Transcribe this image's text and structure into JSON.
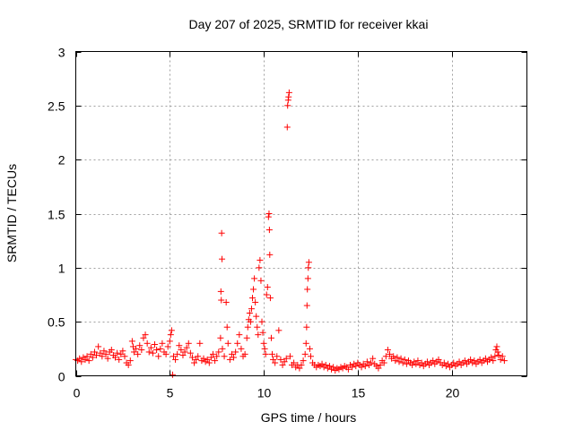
{
  "chart_data": {
    "type": "scatter",
    "title": "Day 207 of 2025, SRMTID for receiver kkai",
    "xlabel": "GPS time / hours",
    "ylabel": "SRMTID / TECUs",
    "xlim": [
      0,
      24
    ],
    "ylim": [
      0,
      3
    ],
    "xticks": [
      0,
      5,
      10,
      15,
      20
    ],
    "xtick_labels": [
      "0",
      "5",
      "10",
      "15",
      "20"
    ],
    "yticks": [
      0,
      0.5,
      1,
      1.5,
      2,
      2.5,
      3
    ],
    "ytick_labels": [
      "0",
      "0.5",
      "1",
      "1.5",
      "2",
      "2.5",
      "3"
    ],
    "grid": true,
    "marker": "+",
    "color": "#ff0000",
    "series": [
      {
        "name": "SRMTID",
        "points": [
          [
            0.0,
            0.15
          ],
          [
            0.1,
            0.14
          ],
          [
            0.2,
            0.16
          ],
          [
            0.3,
            0.13
          ],
          [
            0.4,
            0.17
          ],
          [
            0.5,
            0.15
          ],
          [
            0.6,
            0.18
          ],
          [
            0.7,
            0.14
          ],
          [
            0.8,
            0.2
          ],
          [
            0.9,
            0.17
          ],
          [
            1.0,
            0.22
          ],
          [
            1.1,
            0.19
          ],
          [
            1.2,
            0.27
          ],
          [
            1.3,
            0.21
          ],
          [
            1.4,
            0.18
          ],
          [
            1.5,
            0.23
          ],
          [
            1.6,
            0.2
          ],
          [
            1.7,
            0.16
          ],
          [
            1.8,
            0.22
          ],
          [
            1.9,
            0.24
          ],
          [
            2.0,
            0.19
          ],
          [
            2.1,
            0.17
          ],
          [
            2.2,
            0.21
          ],
          [
            2.3,
            0.15
          ],
          [
            2.4,
            0.2
          ],
          [
            2.5,
            0.23
          ],
          [
            2.6,
            0.18
          ],
          [
            2.7,
            0.12
          ],
          [
            2.8,
            0.1
          ],
          [
            2.9,
            0.14
          ],
          [
            3.0,
            0.32
          ],
          [
            3.05,
            0.27
          ],
          [
            3.1,
            0.22
          ],
          [
            3.2,
            0.25
          ],
          [
            3.3,
            0.2
          ],
          [
            3.4,
            0.28
          ],
          [
            3.5,
            0.24
          ],
          [
            3.6,
            0.35
          ],
          [
            3.7,
            0.38
          ],
          [
            3.8,
            0.3
          ],
          [
            3.9,
            0.22
          ],
          [
            4.0,
            0.26
          ],
          [
            4.1,
            0.21
          ],
          [
            4.2,
            0.29
          ],
          [
            4.3,
            0.24
          ],
          [
            4.4,
            0.18
          ],
          [
            4.5,
            0.25
          ],
          [
            4.6,
            0.3
          ],
          [
            4.7,
            0.22
          ],
          [
            4.8,
            0.2
          ],
          [
            4.9,
            0.27
          ],
          [
            5.0,
            0.32
          ],
          [
            5.05,
            0.38
          ],
          [
            5.1,
            0.42
          ],
          [
            5.15,
            0.01
          ],
          [
            5.2,
            0.18
          ],
          [
            5.3,
            0.15
          ],
          [
            5.4,
            0.2
          ],
          [
            5.5,
            0.28
          ],
          [
            5.6,
            0.24
          ],
          [
            5.7,
            0.19
          ],
          [
            5.8,
            0.22
          ],
          [
            5.9,
            0.26
          ],
          [
            6.0,
            0.3
          ],
          [
            6.1,
            0.21
          ],
          [
            6.2,
            0.17
          ],
          [
            6.3,
            0.12
          ],
          [
            6.4,
            0.15
          ],
          [
            6.5,
            0.18
          ],
          [
            6.6,
            0.3
          ],
          [
            6.7,
            0.14
          ],
          [
            6.8,
            0.16
          ],
          [
            6.9,
            0.13
          ],
          [
            7.0,
            0.15
          ],
          [
            7.1,
            0.12
          ],
          [
            7.2,
            0.17
          ],
          [
            7.3,
            0.2
          ],
          [
            7.4,
            0.14
          ],
          [
            7.5,
            0.18
          ],
          [
            7.6,
            0.22
          ],
          [
            7.7,
            0.35
          ],
          [
            7.72,
            0.78
          ],
          [
            7.74,
            0.7
          ],
          [
            7.76,
            1.32
          ],
          [
            7.78,
            1.08
          ],
          [
            7.8,
            0.25
          ],
          [
            7.9,
            0.18
          ],
          [
            8.0,
            0.68
          ],
          [
            8.05,
            0.45
          ],
          [
            8.1,
            0.3
          ],
          [
            8.2,
            0.15
          ],
          [
            8.3,
            0.2
          ],
          [
            8.4,
            0.17
          ],
          [
            8.5,
            0.22
          ],
          [
            8.6,
            0.3
          ],
          [
            8.7,
            0.38
          ],
          [
            8.8,
            0.25
          ],
          [
            8.9,
            0.18
          ],
          [
            9.0,
            0.2
          ],
          [
            9.1,
            0.35
          ],
          [
            9.15,
            0.45
          ],
          [
            9.2,
            0.52
          ],
          [
            9.25,
            0.58
          ],
          [
            9.3,
            0.5
          ],
          [
            9.35,
            0.62
          ],
          [
            9.4,
            0.72
          ],
          [
            9.45,
            0.8
          ],
          [
            9.5,
            0.9
          ],
          [
            9.55,
            0.68
          ],
          [
            9.6,
            0.55
          ],
          [
            9.65,
            0.45
          ],
          [
            9.7,
            0.38
          ],
          [
            9.75,
            1.0
          ],
          [
            9.8,
            1.07
          ],
          [
            9.85,
            0.88
          ],
          [
            9.9,
            0.5
          ],
          [
            9.95,
            0.4
          ],
          [
            10.0,
            0.3
          ],
          [
            10.05,
            0.25
          ],
          [
            10.1,
            0.2
          ],
          [
            10.15,
            0.75
          ],
          [
            10.2,
            0.82
          ],
          [
            10.25,
            1.47
          ],
          [
            10.28,
            1.5
          ],
          [
            10.3,
            1.35
          ],
          [
            10.32,
            1.12
          ],
          [
            10.35,
            0.72
          ],
          [
            10.4,
            0.35
          ],
          [
            10.45,
            0.2
          ],
          [
            10.5,
            0.15
          ],
          [
            10.6,
            0.12
          ],
          [
            10.7,
            0.18
          ],
          [
            10.8,
            0.42
          ],
          [
            10.9,
            0.15
          ],
          [
            11.0,
            0.1
          ],
          [
            11.1,
            0.13
          ],
          [
            11.2,
            0.16
          ],
          [
            11.25,
            2.3
          ],
          [
            11.27,
            2.5
          ],
          [
            11.3,
            2.55
          ],
          [
            11.32,
            2.58
          ],
          [
            11.35,
            2.62
          ],
          [
            11.4,
            0.18
          ],
          [
            11.5,
            0.1
          ],
          [
            11.6,
            0.12
          ],
          [
            11.7,
            0.08
          ],
          [
            11.8,
            0.1
          ],
          [
            11.9,
            0.07
          ],
          [
            12.0,
            0.1
          ],
          [
            12.1,
            0.14
          ],
          [
            12.2,
            0.2
          ],
          [
            12.25,
            0.3
          ],
          [
            12.28,
            0.45
          ],
          [
            12.3,
            0.65
          ],
          [
            12.32,
            0.8
          ],
          [
            12.35,
            0.9
          ],
          [
            12.37,
            1.0
          ],
          [
            12.4,
            1.05
          ],
          [
            12.45,
            0.25
          ],
          [
            12.5,
            0.18
          ],
          [
            12.6,
            0.12
          ],
          [
            12.7,
            0.1
          ],
          [
            12.8,
            0.08
          ],
          [
            12.9,
            0.1
          ],
          [
            13.0,
            0.09
          ],
          [
            13.1,
            0.11
          ],
          [
            13.2,
            0.08
          ],
          [
            13.3,
            0.1
          ],
          [
            13.4,
            0.07
          ],
          [
            13.5,
            0.09
          ],
          [
            13.6,
            0.06
          ],
          [
            13.7,
            0.08
          ],
          [
            13.8,
            0.05
          ],
          [
            13.9,
            0.07
          ],
          [
            14.0,
            0.06
          ],
          [
            14.1,
            0.08
          ],
          [
            14.2,
            0.07
          ],
          [
            14.3,
            0.09
          ],
          [
            14.4,
            0.08
          ],
          [
            14.5,
            0.06
          ],
          [
            14.6,
            0.1
          ],
          [
            14.7,
            0.08
          ],
          [
            14.8,
            0.11
          ],
          [
            14.9,
            0.09
          ],
          [
            15.0,
            0.12
          ],
          [
            15.1,
            0.1
          ],
          [
            15.2,
            0.08
          ],
          [
            15.3,
            0.11
          ],
          [
            15.4,
            0.09
          ],
          [
            15.5,
            0.13
          ],
          [
            15.6,
            0.1
          ],
          [
            15.7,
            0.12
          ],
          [
            15.8,
            0.16
          ],
          [
            15.9,
            0.11
          ],
          [
            16.0,
            0.09
          ],
          [
            16.1,
            0.07
          ],
          [
            16.2,
            0.1
          ],
          [
            16.3,
            0.14
          ],
          [
            16.4,
            0.12
          ],
          [
            16.5,
            0.18
          ],
          [
            16.6,
            0.24
          ],
          [
            16.7,
            0.2
          ],
          [
            16.8,
            0.16
          ],
          [
            16.9,
            0.18
          ],
          [
            17.0,
            0.14
          ],
          [
            17.1,
            0.17
          ],
          [
            17.2,
            0.13
          ],
          [
            17.3,
            0.16
          ],
          [
            17.4,
            0.12
          ],
          [
            17.5,
            0.15
          ],
          [
            17.6,
            0.11
          ],
          [
            17.7,
            0.14
          ],
          [
            17.8,
            0.12
          ],
          [
            17.9,
            0.1
          ],
          [
            18.0,
            0.13
          ],
          [
            18.1,
            0.11
          ],
          [
            18.2,
            0.14
          ],
          [
            18.3,
            0.1
          ],
          [
            18.4,
            0.12
          ],
          [
            18.5,
            0.09
          ],
          [
            18.6,
            0.11
          ],
          [
            18.7,
            0.13
          ],
          [
            18.8,
            0.1
          ],
          [
            18.9,
            0.12
          ],
          [
            19.0,
            0.14
          ],
          [
            19.1,
            0.11
          ],
          [
            19.2,
            0.13
          ],
          [
            19.3,
            0.15
          ],
          [
            19.4,
            0.12
          ],
          [
            19.5,
            0.1
          ],
          [
            19.6,
            0.12
          ],
          [
            19.7,
            0.09
          ],
          [
            19.8,
            0.11
          ],
          [
            19.9,
            0.08
          ],
          [
            20.0,
            0.1
          ],
          [
            20.1,
            0.12
          ],
          [
            20.2,
            0.09
          ],
          [
            20.3,
            0.11
          ],
          [
            20.4,
            0.13
          ],
          [
            20.5,
            0.1
          ],
          [
            20.6,
            0.12
          ],
          [
            20.7,
            0.14
          ],
          [
            20.8,
            0.11
          ],
          [
            20.9,
            0.13
          ],
          [
            21.0,
            0.15
          ],
          [
            21.1,
            0.12
          ],
          [
            21.2,
            0.14
          ],
          [
            21.3,
            0.11
          ],
          [
            21.4,
            0.13
          ],
          [
            21.5,
            0.15
          ],
          [
            21.6,
            0.12
          ],
          [
            21.7,
            0.14
          ],
          [
            21.8,
            0.16
          ],
          [
            21.9,
            0.13
          ],
          [
            22.0,
            0.15
          ],
          [
            22.1,
            0.17
          ],
          [
            22.2,
            0.14
          ],
          [
            22.3,
            0.18
          ],
          [
            22.35,
            0.24
          ],
          [
            22.4,
            0.27
          ],
          [
            22.45,
            0.22
          ],
          [
            22.5,
            0.19
          ],
          [
            22.6,
            0.15
          ],
          [
            22.7,
            0.18
          ],
          [
            22.8,
            0.14
          ]
        ]
      }
    ]
  }
}
